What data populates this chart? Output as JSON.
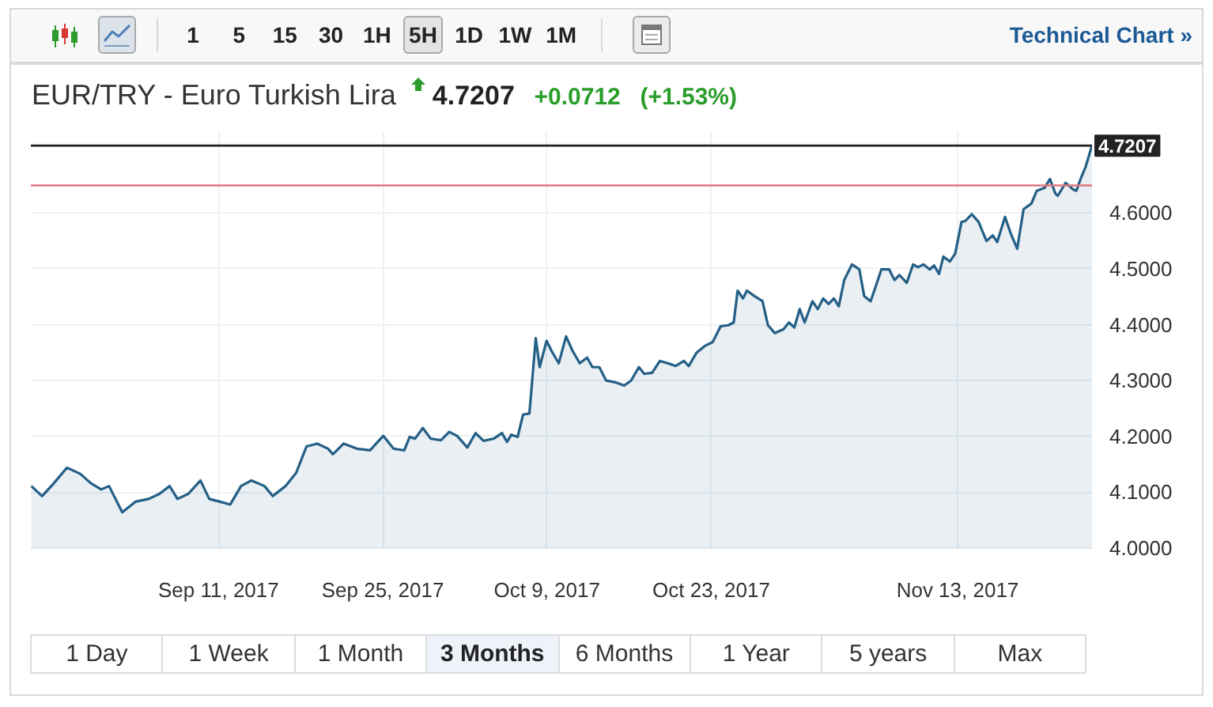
{
  "chart_data": [
    {
      "type": "other",
      "annotations": [
        "1",
        "5",
        "15",
        "30",
        "1H",
        "5H",
        "1D",
        "1W",
        "1M",
        "Technical Chart »"
      ]
    },
    {
      "type": "area",
      "title": "EUR/TRY - Euro Turkish Lira",
      "subtitle": "4.7207 +0.0712 (+1.53%)",
      "color": "#245f86",
      "x": [
        "2017-08-26T01:00",
        "2017-08-26T23:00",
        "2017-08-27T23:00",
        "2017-08-29T02:00",
        "2017-08-30T05:00",
        "2017-08-31T03:00",
        "2017-09-01T00:00",
        "2017-09-01T16:00",
        "2017-09-02T19:00",
        "2017-09-03T22:00",
        "2017-09-05T01:00",
        "2017-09-05T23:00",
        "2017-09-06T20:00",
        "2017-09-07T12:00",
        "2017-09-08T10:00",
        "2017-09-09T11:00",
        "2017-09-10T05:00",
        "2017-09-11T03:00",
        "2017-09-12T00:00",
        "2017-09-12T22:00",
        "2017-09-13T19:00",
        "2017-09-14T22:00",
        "2017-09-15T15:00",
        "2017-09-16T17:00",
        "2017-09-17T15:00",
        "2017-09-18T12:00",
        "2017-09-19T10:00",
        "2017-09-20T08:00",
        "2017-09-20T18:00",
        "2017-09-21T16:00",
        "2017-09-22T19:00",
        "2017-09-23T22:00",
        "2017-09-25T01:00",
        "2017-09-25T22:00",
        "2017-09-26T20:00",
        "2017-09-27T07:00",
        "2017-09-27T18:00",
        "2017-09-28T10:00",
        "2017-09-29T02:00",
        "2017-09-29T23:00",
        "2017-09-30T16:00",
        "2017-10-01T08:00",
        "2017-10-02T05:00",
        "2017-10-02T22:00",
        "2017-10-03T14:00",
        "2017-10-04T11:00",
        "2017-10-05T04:00",
        "2017-10-05T14:00",
        "2017-10-05T23:00",
        "2017-10-06T12:00",
        "2017-10-06T23:00",
        "2017-10-07T12:00",
        "2017-10-08T01:00",
        "2017-10-08T09:00",
        "2017-10-08T23:00",
        "2017-10-09T10:00",
        "2017-10-10T00:00",
        "2017-10-10T15:00",
        "2017-10-11T05:00",
        "2017-10-11T19:00",
        "2017-10-12T10:00",
        "2017-10-12T21:00",
        "2017-10-13T11:00",
        "2017-10-14T01:00",
        "2017-10-14T19:00",
        "2017-10-15T14:00",
        "2017-10-16T04:00",
        "2017-10-16T20:00",
        "2017-10-17T07:00",
        "2017-10-17T23:00",
        "2017-10-18T15:00",
        "2017-10-19T07:00",
        "2017-10-19T23:00",
        "2017-10-20T16:00",
        "2017-10-21T02:00",
        "2017-10-21T18:00",
        "2017-10-22T11:00",
        "2017-10-23T03:00",
        "2017-10-23T19:00",
        "2017-10-24T11:00",
        "2017-10-24T22:00",
        "2017-10-25T06:00",
        "2017-10-25T17:00",
        "2017-10-26T01:00",
        "2017-10-26T17:00",
        "2017-10-27T09:00",
        "2017-10-27T20:00",
        "2017-10-28T10:00",
        "2017-10-29T04:00",
        "2017-10-29T15:00",
        "2017-10-30T02:00",
        "2017-10-30T13:00",
        "2017-10-30T23:00",
        "2017-10-31T15:00",
        "2017-11-01T02:00",
        "2017-11-01T13:00",
        "2017-11-02T00:00",
        "2017-11-02T11:00",
        "2017-11-02T21:00",
        "2017-11-03T08:00",
        "2017-11-04T00:00",
        "2017-11-04T15:00",
        "2017-11-05T01:00",
        "2017-11-05T14:00",
        "2017-11-06T01:00",
        "2017-11-06T12:00",
        "2017-11-07T04:00",
        "2017-11-07T15:00",
        "2017-11-08T01:00",
        "2017-11-08T16:00",
        "2017-11-09T05:00",
        "2017-11-09T15:00",
        "2017-11-10T02:00",
        "2017-11-10T15:00",
        "2017-11-11T00:00",
        "2017-11-11T10:00",
        "2017-11-11T19:00",
        "2017-11-12T08:00",
        "2017-11-12T19:00",
        "2017-11-13T08:00",
        "2017-11-13T16:00",
        "2017-11-14T05:00",
        "2017-11-14T19:00",
        "2017-11-15T11:00",
        "2017-11-16T00:00",
        "2017-11-16T09:00",
        "2017-11-17T01:00",
        "2017-11-17T12:00",
        "2017-11-18T02:00",
        "2017-11-18T15:00",
        "2017-11-19T07:00",
        "2017-11-19T18:00",
        "2017-11-20T10:00",
        "2017-11-20T21:00",
        "2017-11-21T08:00",
        "2017-11-21T13:00",
        "2017-11-22T05:00",
        "2017-11-22T21:00",
        "2017-11-23T03:00",
        "2017-11-23T13:00",
        "2017-11-23T22:00",
        "2017-11-24T11:00"
      ],
      "values": [
        4.111,
        4.093,
        4.116,
        4.144,
        4.133,
        4.116,
        4.105,
        4.111,
        4.064,
        4.083,
        4.088,
        4.097,
        4.111,
        4.088,
        4.097,
        4.121,
        4.088,
        4.083,
        4.078,
        4.111,
        4.121,
        4.111,
        4.093,
        4.111,
        4.135,
        4.182,
        4.187,
        4.178,
        4.168,
        4.187,
        4.178,
        4.175,
        4.201,
        4.178,
        4.175,
        4.199,
        4.196,
        4.215,
        4.196,
        4.193,
        4.208,
        4.201,
        4.18,
        4.206,
        4.192,
        4.196,
        4.206,
        4.19,
        4.203,
        4.199,
        4.239,
        4.241,
        4.376,
        4.324,
        4.371,
        4.352,
        4.331,
        4.379,
        4.352,
        4.331,
        4.341,
        4.324,
        4.324,
        4.3,
        4.297,
        4.291,
        4.3,
        4.324,
        4.312,
        4.314,
        4.335,
        4.331,
        4.326,
        4.335,
        4.326,
        4.35,
        4.362,
        4.369,
        4.397,
        4.399,
        4.404,
        4.461,
        4.447,
        4.461,
        4.451,
        4.442,
        4.399,
        4.385,
        4.392,
        4.404,
        4.395,
        4.428,
        4.404,
        4.442,
        4.428,
        4.447,
        4.437,
        4.447,
        4.433,
        4.48,
        4.508,
        4.499,
        4.451,
        4.442,
        4.47,
        4.499,
        4.499,
        4.48,
        4.489,
        4.475,
        4.508,
        4.503,
        4.508,
        4.499,
        4.506,
        4.491,
        4.522,
        4.513,
        4.527,
        4.584,
        4.586,
        4.598,
        4.584,
        4.55,
        4.56,
        4.548,
        4.593,
        4.565,
        4.536,
        4.607,
        4.617,
        4.64,
        4.645,
        4.661,
        4.635,
        4.631,
        4.654,
        4.642,
        4.64,
        4.664,
        4.683,
        4.721
      ],
      "xlim": [
        "2017-08-26T00:00",
        "2017-11-24T11:00"
      ],
      "xticks": [
        {
          "value": "2017-09-11",
          "label": "Sep 11, 2017"
        },
        {
          "value": "2017-09-25",
          "label": "Sep 25, 2017"
        },
        {
          "value": "2017-10-09",
          "label": "Oct 9, 2017"
        },
        {
          "value": "2017-10-23",
          "label": "Oct 23, 2017"
        },
        {
          "value": "2017-11-13",
          "label": "Nov 13, 2017"
        }
      ],
      "ylim": [
        4.0,
        4.745
      ],
      "yticks": [
        {
          "value": 4.0,
          "label": "4.0000"
        },
        {
          "value": 4.1,
          "label": "4.1000"
        },
        {
          "value": 4.2,
          "label": "4.2000"
        },
        {
          "value": 4.3,
          "label": "4.3000"
        },
        {
          "value": 4.4,
          "label": "4.4000"
        },
        {
          "value": 4.5,
          "label": "4.5000"
        },
        {
          "value": 4.6,
          "label": "4.6000"
        }
      ],
      "grid": true,
      "ref_lines": [
        {
          "axis": "y",
          "value": 4.7207,
          "label": "4.7207",
          "color": "#222222"
        },
        {
          "axis": "y",
          "value": 4.6495,
          "color": "#e0767e"
        }
      ]
    },
    {
      "type": "other",
      "annotations": [
        "1 Day",
        "1 Week",
        "1 Month",
        "3 Months",
        "6 Months",
        "1 Year",
        "5 years",
        "Max"
      ]
    }
  ]
}
